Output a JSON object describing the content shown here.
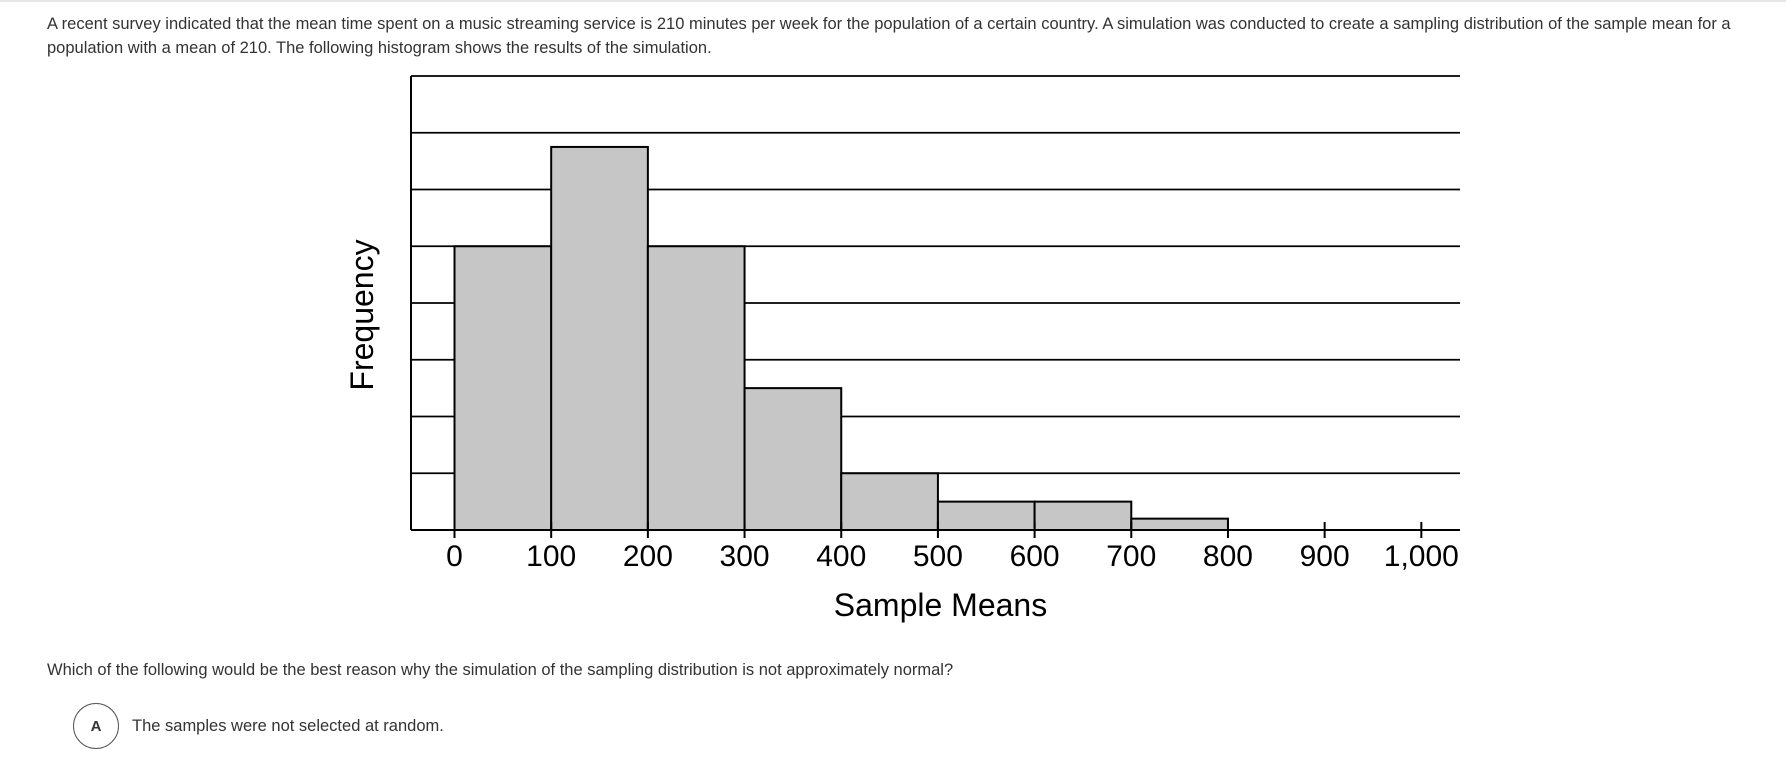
{
  "question": {
    "stem": "A recent survey indicated that the mean time spent on a music streaming service is 210 minutes per week for the population of a certain country. A simulation was conducted to create a sampling distribution of the sample mean for a population with a mean of 210. The following histogram shows the results of the simulation.",
    "prompt": "Which of the following would be the best reason why the simulation of the sampling distribution is not approximately normal?"
  },
  "choices": [
    {
      "letter": "A",
      "text": "The samples were not selected at random."
    }
  ],
  "chart_data": {
    "type": "bar",
    "subtype": "histogram",
    "xlabel": "Sample Means",
    "ylabel": "Frequency",
    "x_ticks": [
      0,
      100,
      200,
      300,
      400,
      500,
      600,
      700,
      800,
      900,
      1000
    ],
    "x_tick_labels": [
      "0",
      "100",
      "200",
      "300",
      "400",
      "500",
      "600",
      "700",
      "800",
      "900",
      "1,000"
    ],
    "xlim": [
      -45,
      1040
    ],
    "ylim": [
      0,
      8
    ],
    "y_grid_lines": 8,
    "y_tick_labels": false,
    "bins": [
      {
        "from": 0,
        "to": 100,
        "value": 5.0
      },
      {
        "from": 100,
        "to": 200,
        "value": 6.75
      },
      {
        "from": 200,
        "to": 300,
        "value": 5.0
      },
      {
        "from": 300,
        "to": 400,
        "value": 2.5
      },
      {
        "from": 400,
        "to": 500,
        "value": 1.0
      },
      {
        "from": 500,
        "to": 600,
        "value": 0.5
      },
      {
        "from": 600,
        "to": 700,
        "value": 0.5
      },
      {
        "from": 700,
        "to": 800,
        "value": 0.2
      }
    ],
    "bar_fill": "#c6c6c6",
    "bar_stroke": "#000000",
    "grid": true
  }
}
